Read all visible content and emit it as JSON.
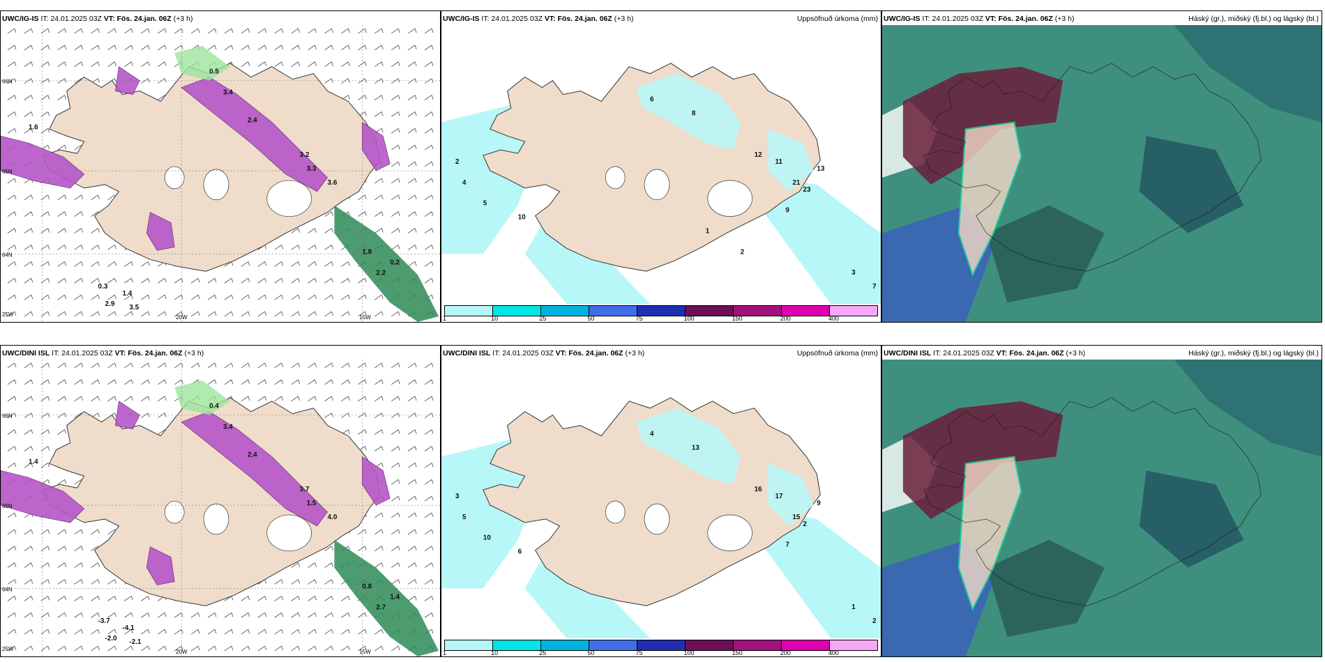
{
  "colors": {
    "land": "#efdccb",
    "sea": "#ffffff",
    "precip_light": "#b8f7f7",
    "snow_purple": "#b657c9",
    "rain_green": "#2e8b57",
    "cloud_high": "#6b1e3a",
    "cloud_mid": "#3f8f7f",
    "cloud_low": "#3a5fbf"
  },
  "colorbar": {
    "colors": [
      "#b8f7f7",
      "#00e5e5",
      "#00b4e0",
      "#3f6ee8",
      "#1f2fb0",
      "#6d0f55",
      "#a0137d",
      "#e000b0",
      "#f5a8f5"
    ],
    "labels": [
      "1",
      "10",
      "25",
      "50",
      "75",
      "100",
      "150",
      "200",
      "400"
    ]
  },
  "panels": [
    {
      "model": "UWC/IG-IS",
      "it_label": "IT:",
      "it_value": "24.01.2025 03Z",
      "vt_label": "VT:",
      "vt_value": "Fös. 24.jan. 06Z",
      "lead": "(+3 h)",
      "description": "",
      "kind": "wind",
      "axis_labels": [
        "66N",
        "65N",
        "64N",
        "25W",
        "20W",
        "15W"
      ],
      "values": [
        "1.6",
        "0.5",
        "3.4",
        "2.4",
        "3.2",
        "3.3",
        "3.6",
        "1.8",
        "2.2",
        "0.2",
        "0.3",
        "1.4",
        "2.9",
        "3.5"
      ]
    },
    {
      "model": "UWC/IG-IS",
      "it_label": "IT:",
      "it_value": "24.01.2025 03Z",
      "vt_label": "VT:",
      "vt_value": "Fös. 24.jan. 06Z",
      "lead": "(+3 h)",
      "description": "Uppsöfnuð úrkoma (mm)",
      "kind": "precip",
      "values": [
        "2",
        "4",
        "5",
        "10",
        "6",
        "8",
        "12",
        "11",
        "21",
        "23",
        "13",
        "9",
        "3",
        "7",
        "1",
        "2"
      ]
    },
    {
      "model": "UWC/IG-IS",
      "it_label": "IT:",
      "it_value": "24.01.2025 03Z",
      "vt_label": "VT:",
      "vt_value": "Fös. 24.jan. 06Z",
      "lead": "(+3 h)",
      "description": "Háský (gr.), miðský (fj.bl.) og lágský (bl.)",
      "kind": "cloud"
    },
    {
      "model": "UWC/DINI ISL",
      "it_label": "IT:",
      "it_value": "24.01.2025 03Z",
      "vt_label": "VT:",
      "vt_value": "Fös. 24.jan. 06Z",
      "lead": "(+3 h)",
      "description": "",
      "kind": "wind",
      "axis_labels": [
        "66N",
        "65N",
        "64N",
        "25W",
        "20W",
        "15W"
      ],
      "values": [
        "1.4",
        "0.4",
        "3.4",
        "2.4",
        "3.7",
        "1.5",
        "4.0",
        "0.8",
        "2.7",
        "1.4",
        "-3.7",
        "-4.1",
        "-2.0",
        "-2.1"
      ]
    },
    {
      "model": "UWC/DINI ISL",
      "it_label": "IT:",
      "it_value": "24.01.2025 03Z",
      "vt_label": "VT:",
      "vt_value": "Fös. 24.jan. 06Z",
      "lead": "(+3 h)",
      "description": "Uppsöfnuð úrkoma (mm)",
      "kind": "precip",
      "values": [
        "3",
        "5",
        "10",
        "6",
        "4",
        "13",
        "16",
        "17",
        "15",
        "2",
        "9",
        "7",
        "1",
        "2"
      ]
    },
    {
      "model": "UWC/DINI ISL",
      "it_label": "IT:",
      "it_value": "24.01.2025 03Z",
      "vt_label": "VT:",
      "vt_value": "Fös. 24.jan. 06Z",
      "lead": "(+3 h)",
      "description": "Háský (gr.), miðský (fj.bl.) og lágský (bl.)",
      "kind": "cloud"
    }
  ]
}
